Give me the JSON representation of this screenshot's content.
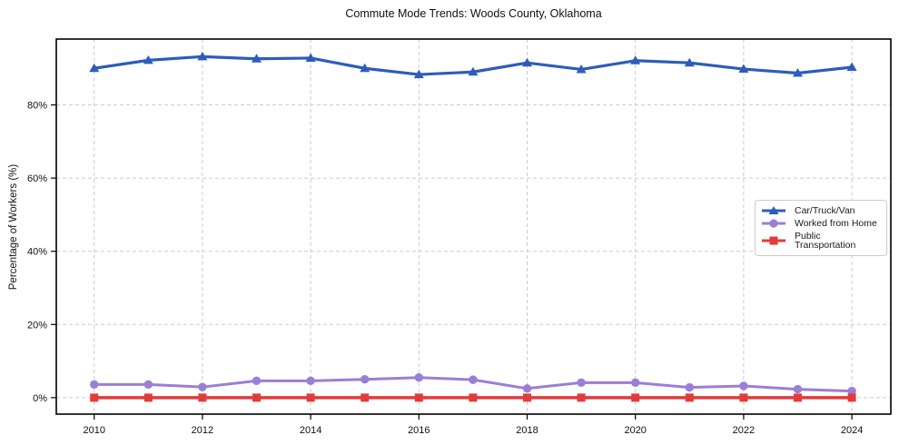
{
  "chart_data": {
    "type": "line",
    "title": "Commute Mode Trends: Woods County, Oklahoma",
    "xlabel": "",
    "ylabel": "Percentage of Workers (%)",
    "x": [
      2010,
      2011,
      2012,
      2013,
      2014,
      2015,
      2016,
      2017,
      2018,
      2019,
      2020,
      2021,
      2022,
      2023,
      2024
    ],
    "series": [
      {
        "name": "Car/Truck/Van",
        "color": "#2d5dba",
        "marker": "triangle-up",
        "line_width": 3.2,
        "values": [
          90.0,
          92.2,
          93.2,
          92.6,
          92.8,
          90.0,
          88.3,
          89.0,
          91.5,
          89.7,
          92.1,
          91.5,
          89.8,
          88.7,
          90.3
        ]
      },
      {
        "name": "Worked from Home",
        "color": "#9b7ed8",
        "marker": "circle",
        "line_width": 3.0,
        "values": [
          3.6,
          3.6,
          2.9,
          4.6,
          4.6,
          5.0,
          5.5,
          4.9,
          2.5,
          4.1,
          4.1,
          2.8,
          3.2,
          2.3,
          1.8
        ]
      },
      {
        "name": "Public Transportation",
        "color": "#e33b3b",
        "marker": "square",
        "line_width": 3.5,
        "values": [
          0.0,
          0.0,
          0.0,
          0.0,
          0.0,
          0.0,
          0.0,
          0.0,
          0.0,
          0.0,
          0.0,
          0.0,
          0.0,
          0.0,
          0.0
        ]
      }
    ],
    "xlim": [
      2009.3,
      2024.72
    ],
    "ylim": [
      -4.5,
      98
    ],
    "x_ticks": [
      2010,
      2012,
      2014,
      2016,
      2018,
      2020,
      2022,
      2024
    ],
    "x_tick_labels": [
      "2010",
      "2012",
      "2014",
      "2016",
      "2018",
      "2020",
      "2022",
      "2024"
    ],
    "y_ticks": [
      0,
      20,
      40,
      60,
      80
    ],
    "y_tick_labels": [
      "0%",
      "20%",
      "40%",
      "60%",
      "80%"
    ],
    "grid": true,
    "grid_color": "#cccccc",
    "axis_color": "#000000",
    "tick_label_color": "#111111",
    "legend_position": "center right"
  }
}
